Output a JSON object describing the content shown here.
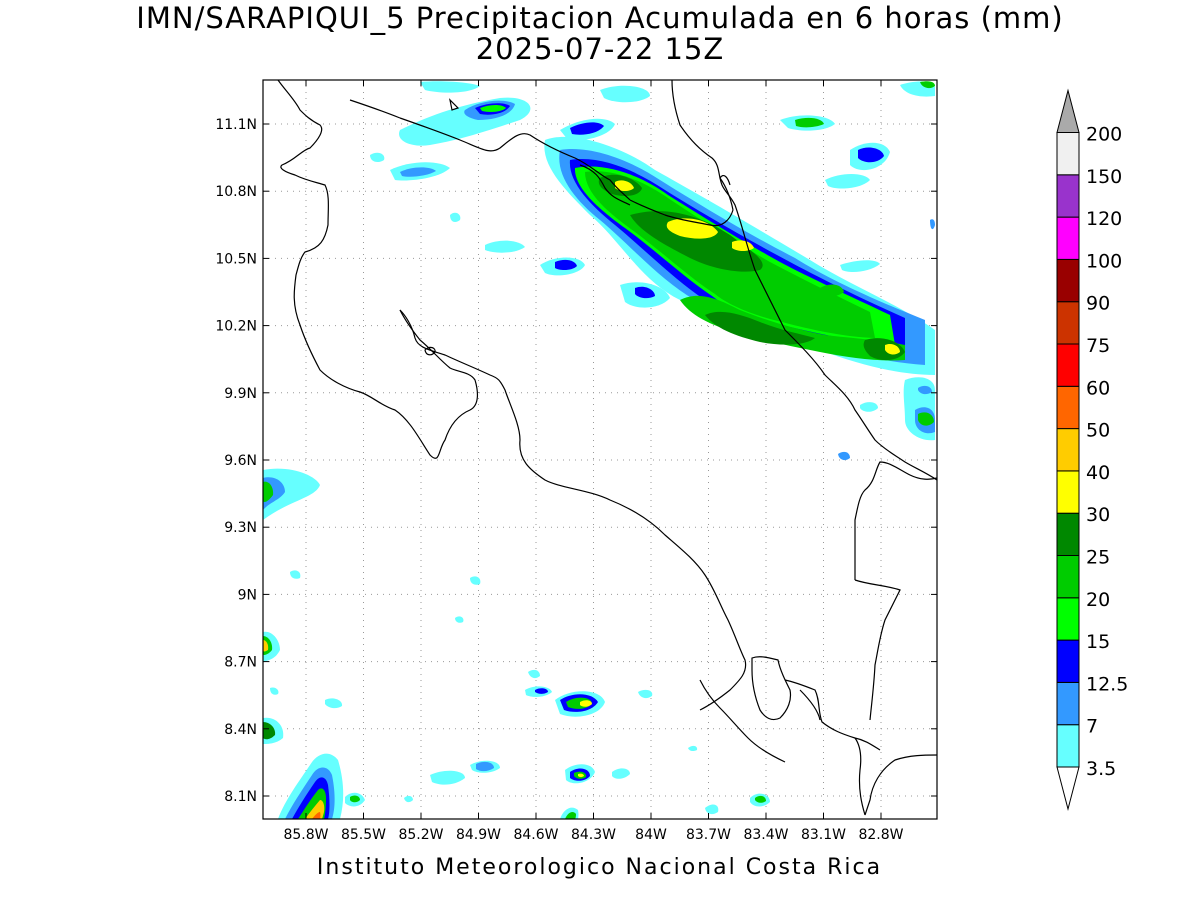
{
  "title": {
    "line1": "IMN/SARAPIQUI_5 Precipitacion Acumulada en 6 horas (mm)",
    "line2": "2025-07-22 15Z"
  },
  "footer": "Instituto Meteorologico Nacional Costa Rica",
  "map": {
    "lon_ticks": [
      "85.8W",
      "85.5W",
      "85.2W",
      "84.9W",
      "84.6W",
      "84.3W",
      "84W",
      "83.7W",
      "83.4W",
      "83.1W",
      "82.8W"
    ],
    "lat_ticks": [
      "11.1N",
      "10.8N",
      "10.5N",
      "10.2N",
      "9.9N",
      "9.6N",
      "9.3N",
      "9N",
      "8.7N",
      "8.4N",
      "8.1N"
    ],
    "grid": true
  },
  "colorbar": {
    "levels": [
      "3.5",
      "7",
      "12.5",
      "15",
      "20",
      "25",
      "30",
      "40",
      "50",
      "60",
      "75",
      "90",
      "100",
      "120",
      "150",
      "200"
    ],
    "colors": [
      "#66ffff",
      "#3399ff",
      "#0000ff",
      "#00ff00",
      "#00cc00",
      "#008800",
      "#ffff00",
      "#ffcc00",
      "#ff6600",
      "#ff0000",
      "#cc3300",
      "#990000",
      "#ff00ff",
      "#9933cc",
      "#f0f0f0",
      "#aaaaaa"
    ]
  }
}
